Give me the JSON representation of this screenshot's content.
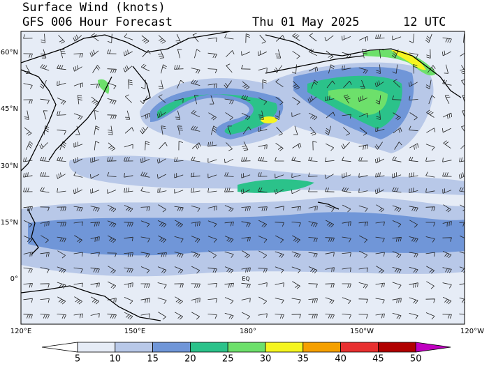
{
  "header": {
    "title": "Surface Wind (knots)",
    "subtitle": "GFS 006 Hour Forecast",
    "date": "Thu 01 May 2025",
    "time": "12 UTC"
  },
  "map": {
    "lat_labels": [
      "60°N",
      "45°N",
      "30°N",
      "15°N",
      "0°"
    ],
    "lon_labels": [
      "120°E",
      "150°E",
      "180°",
      "150°W",
      "120°W"
    ],
    "annotations": [
      "EQ"
    ]
  },
  "colorbar": {
    "labels": [
      "5",
      "10",
      "15",
      "20",
      "25",
      "30",
      "35",
      "40",
      "45",
      "50"
    ]
  }
}
